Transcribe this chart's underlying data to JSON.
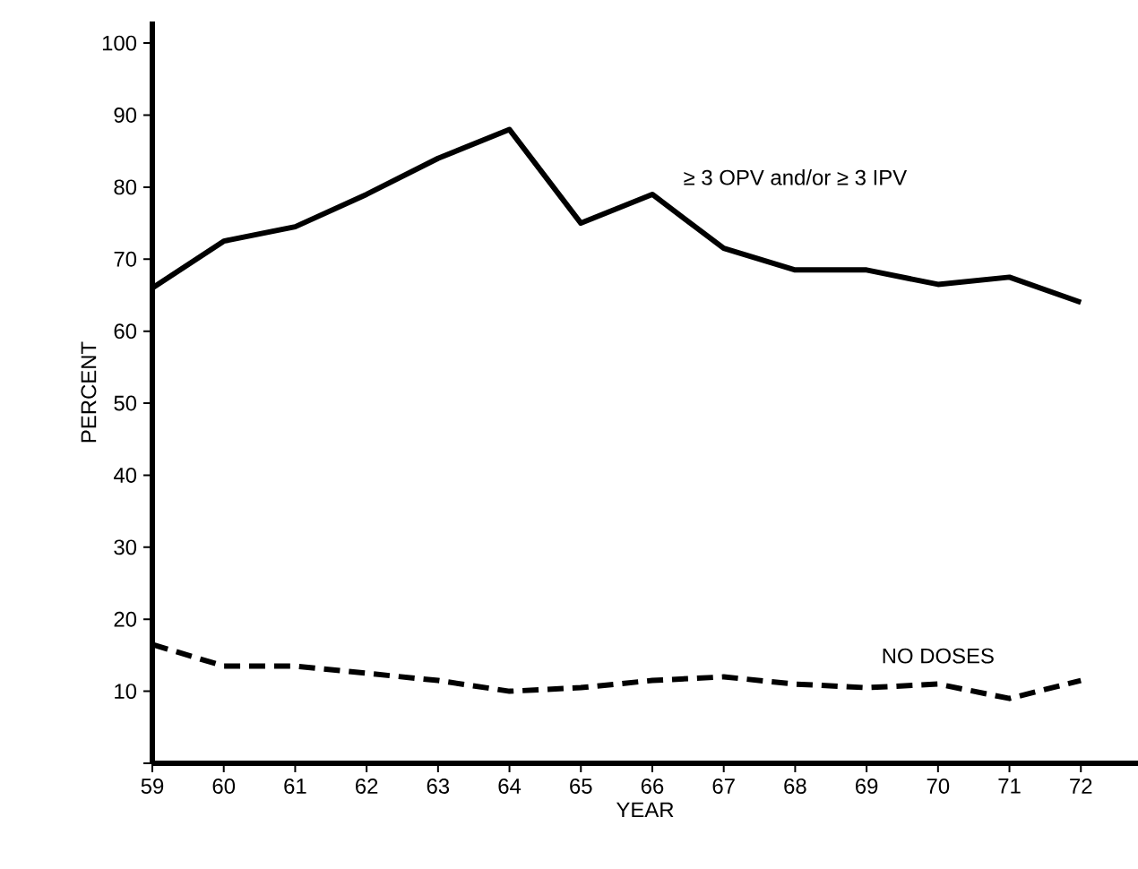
{
  "chart_data": {
    "type": "line",
    "xlabel": "YEAR",
    "ylabel": "PERCENT",
    "x": [
      59,
      60,
      61,
      62,
      63,
      64,
      65,
      66,
      67,
      68,
      69,
      70,
      71,
      72
    ],
    "xlim": [
      59,
      72.8
    ],
    "xticks": [
      59,
      60,
      61,
      62,
      63,
      64,
      65,
      66,
      67,
      68,
      69,
      70,
      71,
      72
    ],
    "ylim": [
      0,
      103
    ],
    "yticks": [
      {
        "value": 0,
        "label": null
      },
      10,
      20,
      30,
      40,
      50,
      60,
      70,
      80,
      90,
      100
    ],
    "marker": "none",
    "series": [
      {
        "name": "≥ 3 OPV and/or ≥ 3 IPV",
        "color": "#000000",
        "line_style": "solid",
        "values": [
          66,
          72.5,
          74.5,
          79,
          84,
          88,
          75,
          79,
          71.5,
          68.5,
          68.5,
          66.5,
          67.5,
          64
        ]
      },
      {
        "name": "NO DOSES",
        "color": "#000000",
        "line_style": "dashed",
        "values": [
          16.5,
          13.5,
          13.5,
          12.5,
          11.5,
          10,
          10.5,
          11.5,
          12,
          11,
          10.5,
          11,
          9,
          11.5
        ]
      }
    ]
  }
}
